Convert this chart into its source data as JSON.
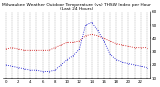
{
  "title": "Milwaukee Weather Outdoor Temperature (vs) THSW Index per Hour (Last 24 Hours)",
  "title_fontsize": 3.2,
  "background_color": "#ffffff",
  "grid_color": "#888888",
  "red_color": "#cc0000",
  "blue_color": "#0000cc",
  "x_hours": [
    0,
    1,
    2,
    3,
    4,
    5,
    6,
    7,
    8,
    9,
    10,
    11,
    12,
    13,
    14,
    15,
    16,
    17,
    18,
    19,
    20,
    21,
    22,
    23
  ],
  "temp_red": [
    32,
    33,
    32,
    31,
    31,
    31,
    31,
    31,
    33,
    35,
    37,
    37,
    38,
    42,
    43,
    42,
    40,
    38,
    36,
    35,
    34,
    33,
    33,
    33
  ],
  "thsw_blue": [
    20,
    19,
    18,
    17,
    16,
    16,
    15,
    15,
    16,
    20,
    24,
    27,
    32,
    50,
    52,
    46,
    38,
    28,
    24,
    22,
    21,
    20,
    19,
    18
  ],
  "ylim_min": 10,
  "ylim_max": 60,
  "yticks": [
    10,
    20,
    30,
    40,
    50,
    60
  ],
  "ylabel_fontsize": 3.0,
  "xlabel_fontsize": 2.8,
  "figwidth": 1.6,
  "figheight": 0.87,
  "dpi": 100,
  "line_lw": 0.6,
  "marker_size": 0.8,
  "grid_lw": 0.25,
  "grid_ls": "--"
}
